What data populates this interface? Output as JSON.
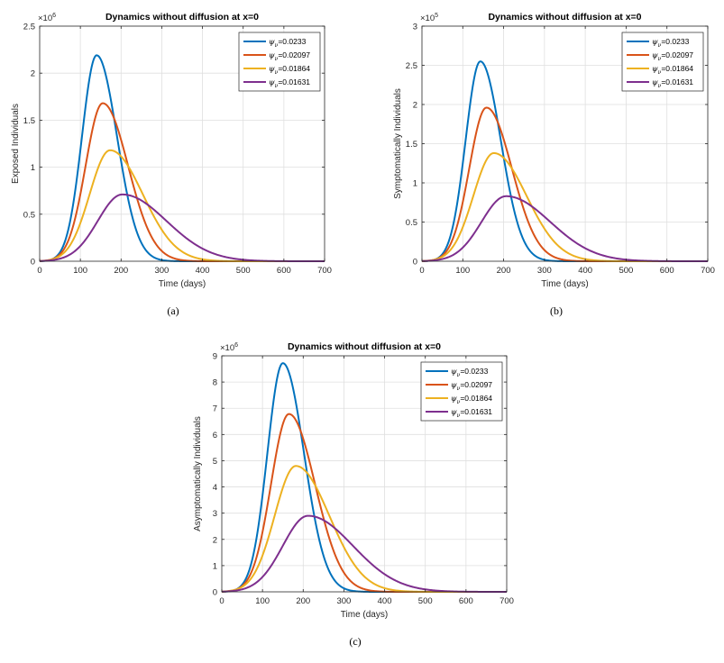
{
  "chart_data": [
    {
      "type": "line",
      "panel": "a",
      "caption": "(a)",
      "title": "Dynamics without diffusion at x=0",
      "xlabel": "Time (days)",
      "ylabel": "Exposed Individuals",
      "exponent": "6",
      "xlim": [
        0,
        700
      ],
      "ylim": [
        0,
        2.5
      ],
      "xticks": [
        0,
        100,
        200,
        300,
        400,
        500,
        600,
        700
      ],
      "yticks": [
        0,
        0.5,
        1,
        1.5,
        2,
        2.5
      ],
      "ytick_labels": [
        "0",
        "0.5",
        "1",
        "1.5",
        "2",
        "2.5"
      ],
      "grid": true,
      "legend": "top-right",
      "series": [
        {
          "name": "ψν=0.0233",
          "value": "0.0233",
          "color": "#0072BD",
          "peak_x": 140,
          "peak_y": 2.19,
          "sigma_l": 36,
          "sigma_r": 50
        },
        {
          "name": "ψν=0.02097",
          "value": "0.02097",
          "color": "#D95319",
          "peak_x": 155,
          "peak_y": 1.68,
          "sigma_l": 42,
          "sigma_r": 62
        },
        {
          "name": "ψν=0.01864",
          "value": "0.01864",
          "color": "#EDB120",
          "peak_x": 173,
          "peak_y": 1.18,
          "sigma_l": 50,
          "sigma_r": 80
        },
        {
          "name": "ψν=0.01631",
          "value": "0.01631",
          "color": "#7E2F8E",
          "peak_x": 203,
          "peak_y": 0.71,
          "sigma_l": 60,
          "sigma_r": 108
        }
      ]
    },
    {
      "type": "line",
      "panel": "b",
      "caption": "(b)",
      "title": "Dynamics without diffusion at x=0",
      "xlabel": "Time (days)",
      "ylabel": "Symptomatically Individuals",
      "exponent": "5",
      "xlim": [
        0,
        700
      ],
      "ylim": [
        0,
        3
      ],
      "xticks": [
        0,
        100,
        200,
        300,
        400,
        500,
        600,
        700
      ],
      "yticks": [
        0,
        0.5,
        1,
        1.5,
        2,
        2.5,
        3
      ],
      "ytick_labels": [
        "0",
        "0.5",
        "1",
        "1.5",
        "2",
        "2.5",
        "3"
      ],
      "grid": true,
      "legend": "top-right",
      "series": [
        {
          "name": "ψν=0.0233",
          "value": "0.0233",
          "color": "#0072BD",
          "peak_x": 143,
          "peak_y": 2.55,
          "sigma_l": 36,
          "sigma_r": 50
        },
        {
          "name": "ψν=0.02097",
          "value": "0.02097",
          "color": "#D95319",
          "peak_x": 158,
          "peak_y": 1.96,
          "sigma_l": 42,
          "sigma_r": 62
        },
        {
          "name": "ψν=0.01864",
          "value": "0.01864",
          "color": "#EDB120",
          "peak_x": 176,
          "peak_y": 1.38,
          "sigma_l": 50,
          "sigma_r": 80
        },
        {
          "name": "ψν=0.01631",
          "value": "0.01631",
          "color": "#7E2F8E",
          "peak_x": 206,
          "peak_y": 0.83,
          "sigma_l": 60,
          "sigma_r": 108
        }
      ]
    },
    {
      "type": "line",
      "panel": "c",
      "caption": "(c)",
      "title": "Dynamics without diffusion at x=0",
      "xlabel": "Time (days)",
      "ylabel": "Asymptomatically Individuals",
      "exponent": "6",
      "xlim": [
        0,
        700
      ],
      "ylim": [
        0,
        9
      ],
      "xticks": [
        0,
        100,
        200,
        300,
        400,
        500,
        600,
        700
      ],
      "yticks": [
        0,
        1,
        2,
        3,
        4,
        5,
        6,
        7,
        8,
        9
      ],
      "ytick_labels": [
        "0",
        "1",
        "2",
        "3",
        "4",
        "5",
        "6",
        "7",
        "8",
        "9"
      ],
      "grid": true,
      "legend": "top-right",
      "series": [
        {
          "name": "ψν=0.0233",
          "value": "0.0233",
          "color": "#0072BD",
          "peak_x": 150,
          "peak_y": 8.72,
          "sigma_l": 38,
          "sigma_r": 52
        },
        {
          "name": "ψν=0.02097",
          "value": "0.02097",
          "color": "#D95319",
          "peak_x": 165,
          "peak_y": 6.78,
          "sigma_l": 44,
          "sigma_r": 64
        },
        {
          "name": "ψν=0.01864",
          "value": "0.01864",
          "color": "#EDB120",
          "peak_x": 182,
          "peak_y": 4.8,
          "sigma_l": 52,
          "sigma_r": 82
        },
        {
          "name": "ψν=0.01631",
          "value": "0.01631",
          "color": "#7E2F8E",
          "peak_x": 212,
          "peak_y": 2.9,
          "sigma_l": 62,
          "sigma_r": 110
        }
      ]
    }
  ]
}
